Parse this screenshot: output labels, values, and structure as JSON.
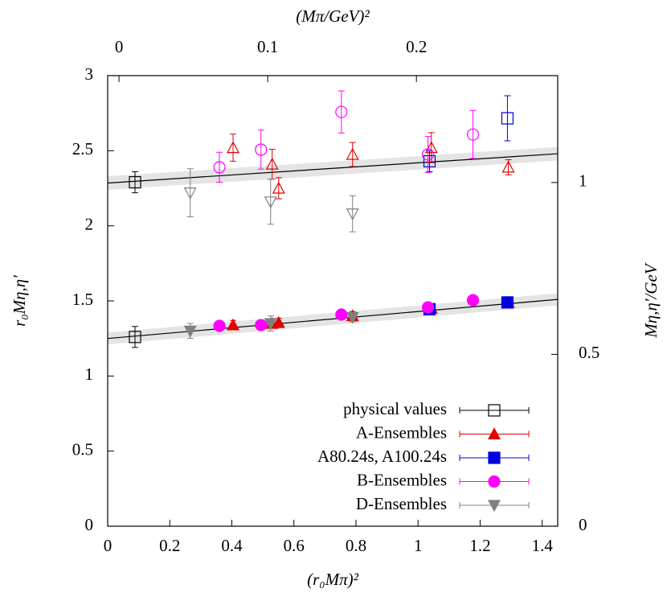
{
  "chart_data": {
    "type": "scatter",
    "x_label": "(r₀Mπ)²",
    "x2_label": "(Mπ/GeV)²",
    "y_label": "r₀Mη,η′",
    "y2_label": "Mη,η′/GeV",
    "xlim": [
      0,
      1.45
    ],
    "xticks": [
      0,
      0.2,
      0.4,
      0.6,
      0.8,
      1,
      1.2,
      1.4
    ],
    "x2lim": [
      -0.0076,
      0.295
    ],
    "x2ticks": [
      0,
      0.1,
      0.2
    ],
    "ylim": [
      0,
      3
    ],
    "yticks": [
      0,
      0.5,
      1,
      1.5,
      2,
      2.5,
      3
    ],
    "y2lim": [
      0,
      1.311
    ],
    "y2ticks": [
      0,
      0.5,
      1
    ],
    "legend": "lower right",
    "fits": [
      {
        "x": [
          0,
          1.45
        ],
        "values": [
          2.285,
          2.48
        ],
        "band": 0.045
      },
      {
        "x": [
          0,
          1.45
        ],
        "values": [
          1.25,
          1.51
        ],
        "band": 0.04
      }
    ],
    "series": [
      {
        "name": "physical values",
        "color": "#000000",
        "marker": "square",
        "filled": false,
        "x": [
          0.088
        ],
        "values": [
          1.26
        ],
        "errors": [
          0.07
        ],
        "values_eta_prime": [
          2.29
        ],
        "errors_eta_prime": [
          0.07
        ]
      },
      {
        "name": "A-Ensembles",
        "color": "#e00000",
        "marker": "triangle",
        "filled": true,
        "x": [
          0.404,
          0.53,
          0.551,
          0.789,
          1.043,
          1.291
        ],
        "values": [
          1.34,
          1.35,
          1.355,
          1.4,
          1.45,
          1.49
        ],
        "errors": [
          0.03,
          0.03,
          0.03,
          0.03,
          0.03,
          0.03
        ],
        "values_eta_prime": [
          2.52,
          2.41,
          2.25,
          2.475,
          2.52,
          2.39
        ],
        "errors_eta_prime": [
          0.09,
          0.1,
          0.07,
          0.08,
          0.1,
          0.05
        ]
      },
      {
        "name": "A80.24s, A100.24s",
        "color": "#0000e0",
        "marker": "square",
        "filled": true,
        "x": [
          1.037,
          1.288
        ],
        "values": [
          1.445,
          1.49
        ],
        "errors": [
          0.02,
          0.02
        ],
        "values_eta_prime": [
          2.43,
          2.716
        ],
        "errors_eta_prime": [
          0.07,
          0.15
        ]
      },
      {
        "name": "B-Ensembles",
        "color": "#ff00ff",
        "marker": "circle",
        "filled": true,
        "x": [
          0.36,
          0.494,
          0.753,
          1.032,
          1.177
        ],
        "values": [
          1.334,
          1.339,
          1.409,
          1.457,
          1.505
        ],
        "errors": [
          0.02,
          0.02,
          0.02,
          0.02,
          0.02
        ],
        "values_eta_prime": [
          2.39,
          2.507,
          2.758,
          2.475,
          2.608
        ],
        "errors_eta_prime": [
          0.1,
          0.13,
          0.14,
          0.12,
          0.16
        ]
      },
      {
        "name": "D-Ensembles",
        "color": "#808080",
        "marker": "triangle-down",
        "filled": true,
        "x": [
          0.266,
          0.525,
          0.789
        ],
        "values": [
          1.3,
          1.35,
          1.39
        ],
        "errors": [
          0.05,
          0.05,
          0.03
        ],
        "values_eta_prime": [
          2.22,
          2.16,
          2.08
        ],
        "errors_eta_prime": [
          0.16,
          0.15,
          0.12
        ]
      }
    ]
  }
}
